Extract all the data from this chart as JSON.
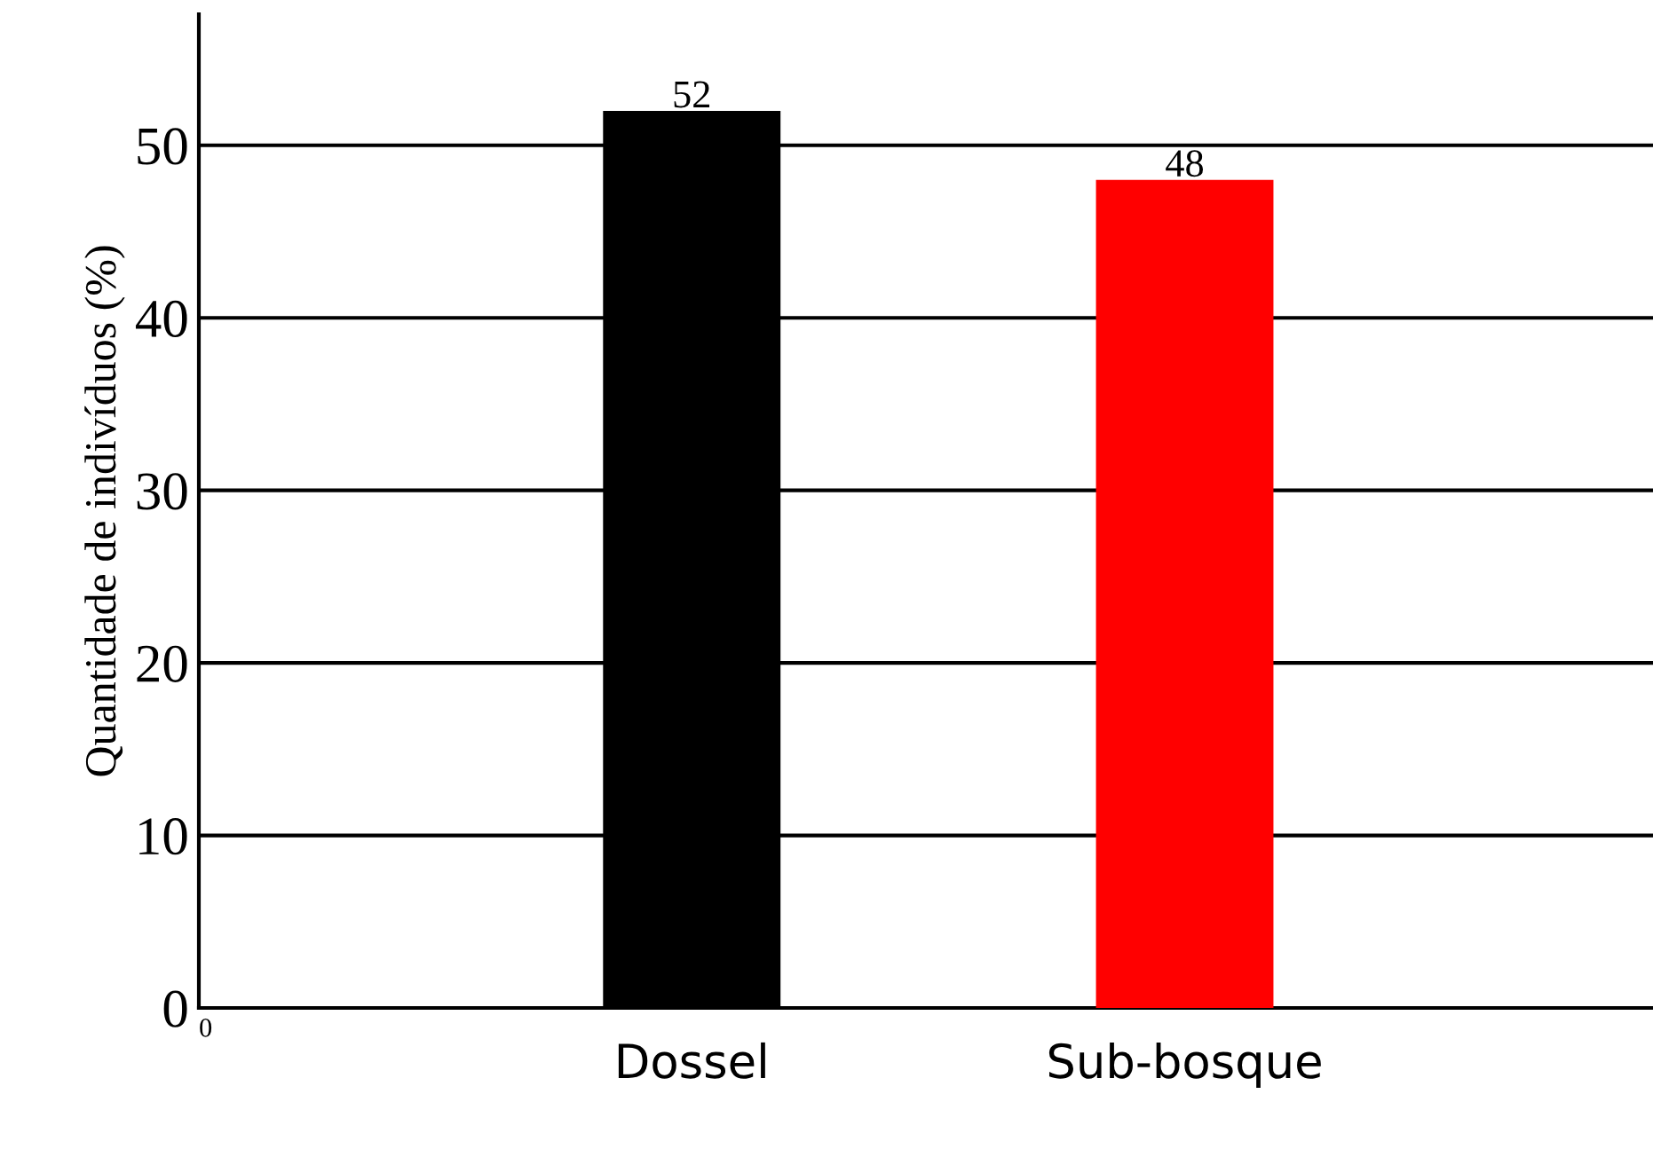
{
  "chart_data": {
    "type": "bar",
    "ylabel": "Quantidade de indivíduos (%)",
    "categories": [
      "Dossel",
      "Sub-bosque"
    ],
    "values": [
      52,
      48
    ],
    "colors": [
      "#000000",
      "#ff0000"
    ],
    "ylim": [
      0,
      57.6
    ],
    "yticks": [
      0,
      10,
      20,
      30,
      40,
      50
    ],
    "grid": "y",
    "data_labels": true,
    "annotations": [
      "0"
    ]
  }
}
